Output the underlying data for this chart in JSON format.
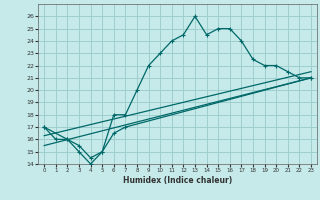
{
  "xlabel": "Humidex (Indice chaleur)",
  "bg_color": "#c6eaea",
  "grid_color": "#9ecece",
  "line_color": "#006868",
  "xlim": [
    -0.5,
    23.5
  ],
  "ylim": [
    14,
    27
  ],
  "xticks": [
    0,
    1,
    2,
    3,
    4,
    5,
    6,
    7,
    8,
    9,
    10,
    11,
    12,
    13,
    14,
    15,
    16,
    17,
    18,
    19,
    20,
    21,
    22,
    23
  ],
  "yticks": [
    14,
    15,
    16,
    17,
    18,
    19,
    20,
    21,
    22,
    23,
    24,
    25,
    26
  ],
  "line1_x": [
    0,
    1,
    2,
    3,
    4,
    5,
    6,
    7,
    8,
    9,
    10,
    11,
    12,
    13,
    14,
    15,
    16,
    17,
    18,
    19,
    20,
    21,
    22,
    23
  ],
  "line1_y": [
    17,
    16,
    16,
    15,
    14,
    15,
    18,
    18,
    20,
    22,
    23,
    24,
    24.5,
    26,
    24.5,
    25,
    25,
    24,
    22.5,
    22,
    22,
    21.5,
    21,
    21
  ],
  "line2_x": [
    0,
    2,
    3,
    4,
    5,
    6,
    7,
    23
  ],
  "line2_y": [
    17,
    16,
    15.5,
    14.5,
    15,
    16.5,
    17,
    21
  ],
  "line3_x": [
    0,
    23
  ],
  "line3_y": [
    15.5,
    21
  ],
  "line4_x": [
    0,
    23
  ],
  "line4_y": [
    16.3,
    21.5
  ]
}
